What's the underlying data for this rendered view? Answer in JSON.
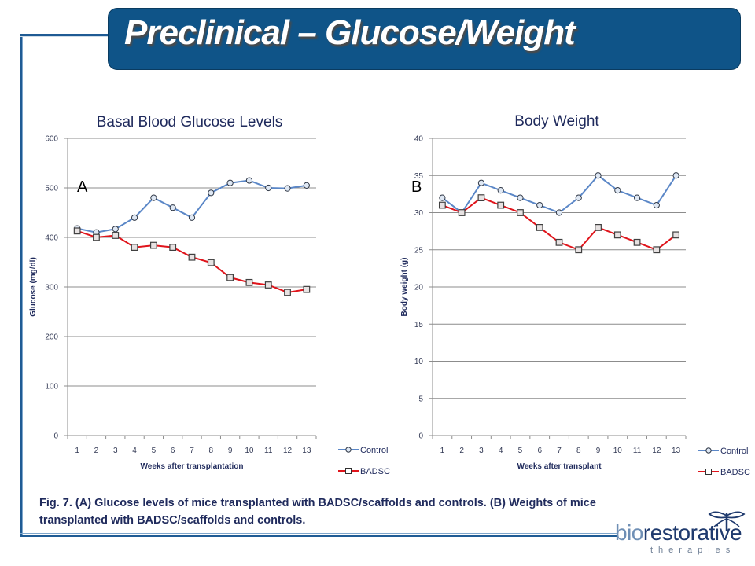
{
  "slide": {
    "title": "Preclinical – Glucose/Weight",
    "caption_line1": "Fig. 7. (A) Glucose levels of mice transplanted with BADSC/scaffolds and controls. (B) Weights of mice",
    "caption_line2": "transplanted with BADSC/scaffolds  and controls.",
    "logo_bio": "bio",
    "logo_rest": "restorative",
    "logo_sub": "therapies"
  },
  "colors": {
    "control": "#5b87c7",
    "badsc": "#e0141b",
    "title_bg": "#0f5488",
    "text_dark": "#1f2a5c"
  },
  "chart_data": [
    {
      "type": "line",
      "panel": "A",
      "title": "Basal Blood Glucose Levels",
      "xlabel": "Weeks after transplantation",
      "ylabel": "Glucose (mg/dl)",
      "categories": [
        "1",
        "2",
        "3",
        "4",
        "5",
        "6",
        "7",
        "8",
        "9",
        "10",
        "11",
        "12",
        "13"
      ],
      "ylim": [
        0,
        600
      ],
      "yticks": [
        0,
        100,
        200,
        300,
        400,
        500,
        600
      ],
      "grid": true,
      "legend": "right",
      "series": [
        {
          "name": "Control",
          "marker": "circle",
          "values": [
            418,
            410,
            417,
            440,
            480,
            460,
            440,
            490,
            510,
            515,
            500,
            499,
            505
          ]
        },
        {
          "name": "BADSC",
          "marker": "square",
          "values": [
            413,
            400,
            404,
            380,
            384,
            380,
            360,
            349,
            319,
            309,
            304,
            289,
            295
          ]
        }
      ]
    },
    {
      "type": "line",
      "panel": "B",
      "title": "Body Weight",
      "xlabel": "Weeks after transplant",
      "ylabel": "Body weight (g)",
      "categories": [
        "1",
        "2",
        "3",
        "4",
        "5",
        "6",
        "7",
        "8",
        "9",
        "10",
        "11",
        "12",
        "13"
      ],
      "ylim": [
        0,
        40
      ],
      "yticks": [
        0,
        5,
        10,
        15,
        20,
        25,
        30,
        35,
        40
      ],
      "grid": true,
      "legend": "right",
      "series": [
        {
          "name": "Control",
          "marker": "circle",
          "values": [
            32,
            30,
            34,
            33,
            32,
            31,
            30,
            32,
            35,
            33,
            32,
            31,
            35
          ]
        },
        {
          "name": "BADSC",
          "marker": "square",
          "values": [
            31,
            30,
            32,
            31,
            30,
            28,
            26,
            25,
            28,
            27,
            26,
            25,
            27
          ]
        }
      ]
    }
  ]
}
